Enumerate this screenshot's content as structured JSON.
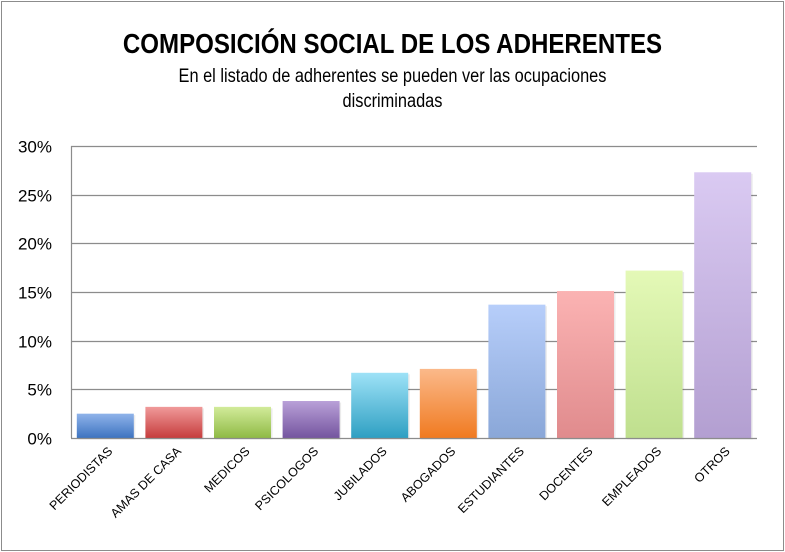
{
  "chart_data": {
    "type": "bar",
    "title": "COMPOSICIÓN SOCIAL DE LOS ADHERENTES",
    "subtitle_lines": [
      "En el listado de adherentes se pueden ver las ocupaciones",
      "discriminadas"
    ],
    "xlabel": "",
    "ylabel": "",
    "categories": [
      "PERIODISTAS",
      "AMAS DE CASA",
      "MEDICOS",
      "PSICOLOGOS",
      "JUBILADOS",
      "ABOGADOS",
      "ESTUDIANTES",
      "DOCENTES",
      "EMPLEADOS",
      "OTROS"
    ],
    "values": [
      2.5,
      3.2,
      3.2,
      3.8,
      6.7,
      7.1,
      13.7,
      15.1,
      17.2,
      27.3
    ],
    "unit": "%",
    "ylim": [
      0,
      30
    ],
    "yticks": [
      0,
      5,
      10,
      15,
      20,
      25,
      30
    ],
    "ytick_labels": [
      "0%",
      "5%",
      "10%",
      "15%",
      "20%",
      "25%",
      "30%"
    ],
    "grid": true,
    "legend": "none",
    "bar_colors": [
      [
        "#8fb3ea",
        "#3d73c0"
      ],
      [
        "#f09a9a",
        "#c63c3c"
      ],
      [
        "#d2eb9a",
        "#8fba45"
      ],
      [
        "#b9a0d8",
        "#74559f"
      ],
      [
        "#9ee2f7",
        "#2e9fc2"
      ],
      [
        "#fbb98a",
        "#f07a20"
      ],
      [
        "#b7cefa",
        "#8aa7d8"
      ],
      [
        "#fbb3b3",
        "#e08b8d"
      ],
      [
        "#e4f9b7",
        "#bfdf8e"
      ],
      [
        "#dacaf2",
        "#b39fd1"
      ]
    ]
  }
}
